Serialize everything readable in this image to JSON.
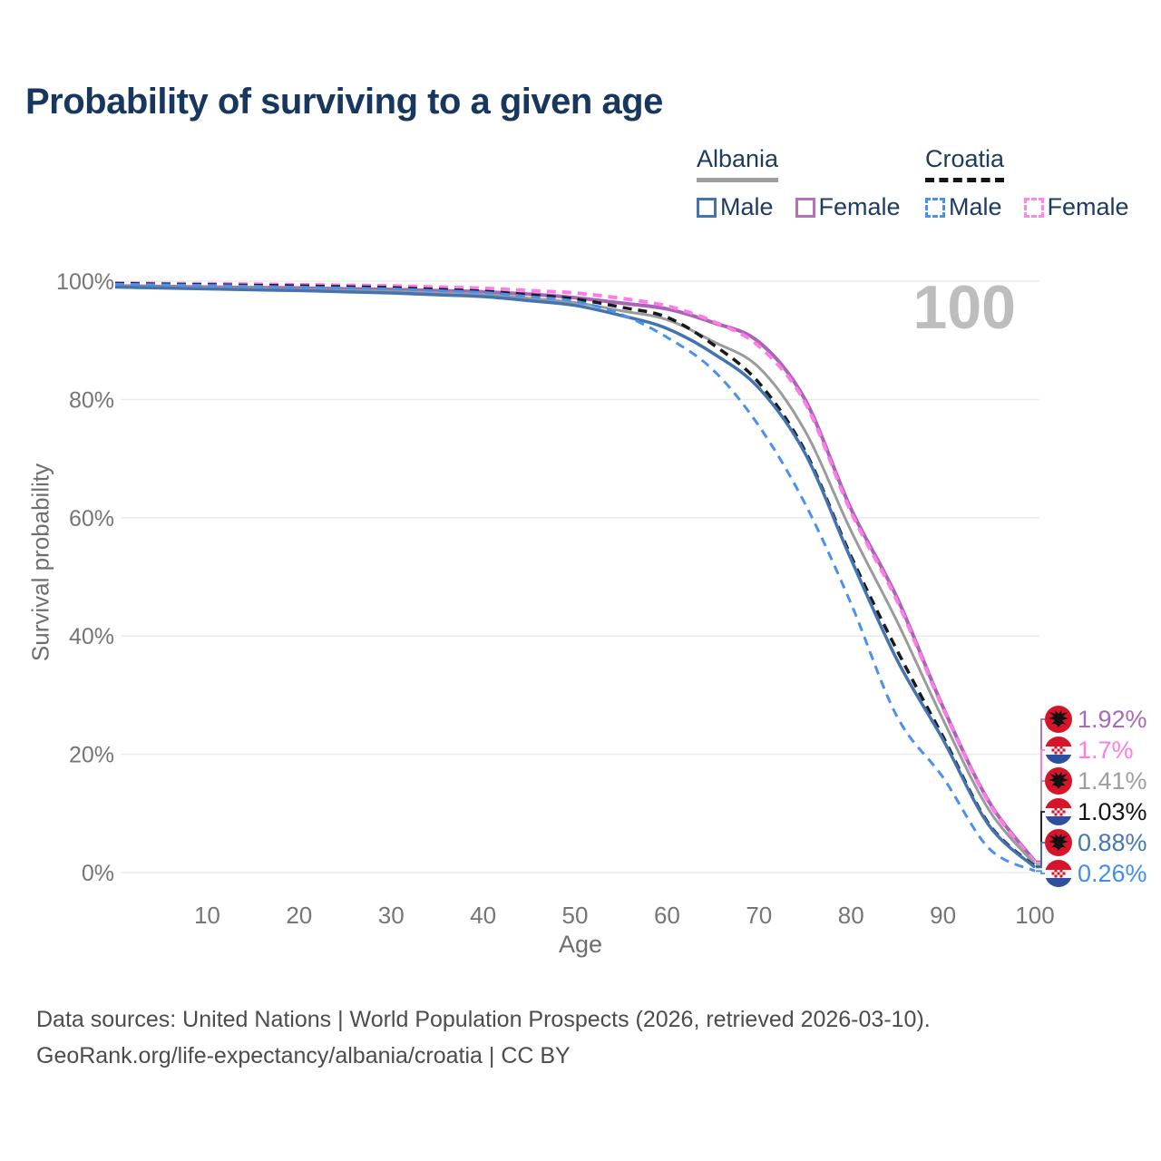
{
  "title": "Probability of surviving to a given age",
  "watermark_age": "100",
  "legend": {
    "albania": {
      "label": "Albania",
      "male": "Male",
      "female": "Female"
    },
    "croatia": {
      "label": "Croatia",
      "male": "Male",
      "female": "Female"
    }
  },
  "footer": {
    "line1": "Data sources: United Nations | World Population Prospects (2026, retrieved 2026-03-10).",
    "line2": "GeoRank.org/life-expectancy/albania/croatia | CC BY"
  },
  "chart_data": {
    "type": "line",
    "title": "Probability of surviving to a given age",
    "xlabel": "Age",
    "ylabel": "Survival probability",
    "xlim": [
      0,
      100
    ],
    "ylim": [
      0,
      100
    ],
    "x_ticks": [
      10,
      20,
      30,
      40,
      50,
      60,
      70,
      80,
      90,
      100
    ],
    "y_ticks": [
      {
        "value": 0,
        "label": "0%"
      },
      {
        "value": 20,
        "label": "20%"
      },
      {
        "value": 40,
        "label": "40%"
      },
      {
        "value": 60,
        "label": "60%"
      },
      {
        "value": 80,
        "label": "80%"
      },
      {
        "value": 100,
        "label": "100%"
      }
    ],
    "grid": true,
    "legend_position": "top-right",
    "ages": [
      0,
      5,
      10,
      15,
      20,
      25,
      30,
      35,
      40,
      45,
      50,
      55,
      60,
      65,
      70,
      75,
      80,
      85,
      90,
      95,
      100
    ],
    "series": [
      {
        "id": "albania-female",
        "name": "Albania Female",
        "country": "Albania",
        "sex": "Female",
        "color": "#a965b5",
        "dashed": false,
        "values": [
          99.2,
          99.1,
          99.0,
          98.9,
          98.85,
          98.7,
          98.6,
          98.4,
          98.2,
          97.8,
          97.2,
          96.3,
          95.3,
          93.0,
          89.7,
          80.0,
          61.5,
          46.5,
          28.0,
          12.0,
          1.92
        ]
      },
      {
        "id": "croatia-female",
        "name": "Croatia Female",
        "country": "Croatia",
        "sex": "Female",
        "color": "#ff7ce8",
        "dashed": true,
        "values": [
          99.7,
          99.6,
          99.55,
          99.5,
          99.4,
          99.3,
          99.2,
          99.0,
          98.8,
          98.4,
          98.0,
          97.1,
          95.8,
          93.2,
          89.0,
          79.5,
          61.0,
          46.0,
          27.8,
          11.8,
          1.7
        ]
      },
      {
        "id": "albania-total",
        "name": "Albania",
        "country": "Albania",
        "sex": "Both",
        "color": "#9b9b9b",
        "dashed": false,
        "values": [
          99.1,
          99.0,
          98.9,
          98.75,
          98.6,
          98.45,
          98.3,
          98.05,
          97.8,
          97.1,
          96.4,
          95.0,
          93.5,
          89.8,
          85.4,
          74.7,
          57.8,
          42.5,
          25.9,
          10.6,
          1.41
        ]
      },
      {
        "id": "croatia-total",
        "name": "Croatia",
        "country": "Croatia",
        "sex": "Both",
        "color": "#1a1a1a",
        "dashed": true,
        "values": [
          99.6,
          99.5,
          99.4,
          99.3,
          99.2,
          99.05,
          98.9,
          98.6,
          98.3,
          97.7,
          97.0,
          95.6,
          93.9,
          89.3,
          82.8,
          71.3,
          53.5,
          37.6,
          23.0,
          8.2,
          1.03
        ]
      },
      {
        "id": "albania-male",
        "name": "Albania Male",
        "country": "Albania",
        "sex": "Male",
        "color": "#4374b0",
        "dashed": false,
        "values": [
          99.0,
          98.85,
          98.7,
          98.55,
          98.4,
          98.2,
          98.0,
          97.7,
          97.4,
          96.7,
          95.9,
          94.2,
          92.0,
          87.8,
          81.9,
          70.9,
          53.0,
          36.0,
          22.5,
          8.0,
          0.88
        ]
      },
      {
        "id": "croatia-male",
        "name": "Croatia Male",
        "country": "Croatia",
        "sex": "Male",
        "color": "#4a90f0",
        "dashed": true,
        "values": [
          99.5,
          99.4,
          99.3,
          99.15,
          99.0,
          98.85,
          98.7,
          98.4,
          98.1,
          97.4,
          96.6,
          94.4,
          90.5,
          85.0,
          75.5,
          62.4,
          45.5,
          26.4,
          16.1,
          4.1,
          0.26
        ]
      }
    ],
    "end_labels": [
      {
        "label": "1.92%",
        "series": "albania-female",
        "flag": "albania",
        "color": "#a76bb2"
      },
      {
        "label": "1.7%",
        "series": "croatia-female",
        "flag": "croatia",
        "color": "#ff7ce8"
      },
      {
        "label": "1.41%",
        "series": "albania-total",
        "flag": "albania",
        "color": "#9e9e9e"
      },
      {
        "label": "1.03%",
        "series": "croatia-total",
        "flag": "croatia",
        "color": "#141414"
      },
      {
        "label": "0.88%",
        "series": "albania-male",
        "flag": "albania",
        "color": "#4678b2"
      },
      {
        "label": "0.26%",
        "series": "croatia-male",
        "flag": "croatia",
        "color": "#418ef0"
      }
    ],
    "flag_colors": {
      "albania_red": "#d6152b",
      "albania_eagle": "#111111",
      "croatia_red": "#d6152b",
      "croatia_white": "#f4f4f4",
      "croatia_blue": "#2d4f9e"
    }
  }
}
